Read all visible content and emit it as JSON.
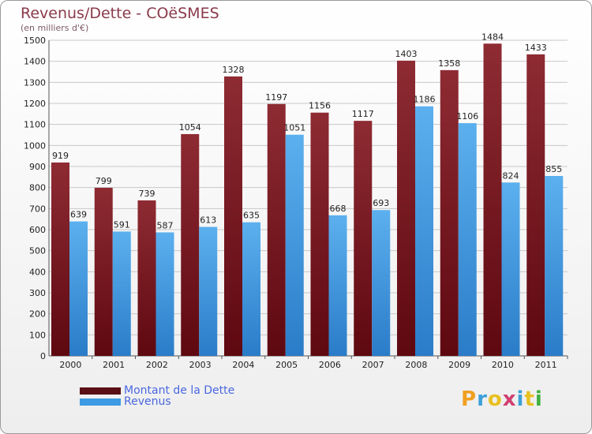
{
  "title": "Revenus/Dette - COëSMES",
  "subtitle": "(en milliers d'€)",
  "logo": {
    "letters": [
      "P",
      "r",
      "o",
      "x",
      "i",
      "t",
      "i"
    ]
  },
  "colors": {
    "dette": "#7a1a24",
    "revenus": "#3d9ae4",
    "logo": [
      "#f0a020",
      "#3da0d8",
      "#e8c020",
      "#d04070",
      "#3da0d8",
      "#e8c020",
      "#40b040"
    ]
  },
  "legend": [
    {
      "label": "Montant de la Dette",
      "color": "#5a0e16"
    },
    {
      "label": "Revenus",
      "color": "#3d9ae4"
    }
  ],
  "chart_data": {
    "type": "bar",
    "title": "Revenus/Dette - COëSMES",
    "ylabel": "(en milliers d'€)",
    "categories": [
      "2000",
      "2001",
      "2002",
      "2003",
      "2004",
      "2005",
      "2006",
      "2007",
      "2008",
      "2009",
      "2010",
      "2011"
    ],
    "series": [
      {
        "name": "Montant de la Dette",
        "values": [
          919,
          799,
          739,
          1054,
          1328,
          1197,
          1156,
          1117,
          1403,
          1358,
          1484,
          1433
        ]
      },
      {
        "name": "Revenus",
        "values": [
          639,
          591,
          587,
          613,
          635,
          1051,
          668,
          693,
          1186,
          1106,
          824,
          855
        ]
      }
    ],
    "ylim": [
      0,
      1500
    ],
    "yticks": [
      0,
      100,
      200,
      300,
      400,
      500,
      600,
      700,
      800,
      900,
      1000,
      1100,
      1200,
      1300,
      1400,
      1500
    ],
    "grid": true,
    "legend_position": "bottom-left"
  }
}
